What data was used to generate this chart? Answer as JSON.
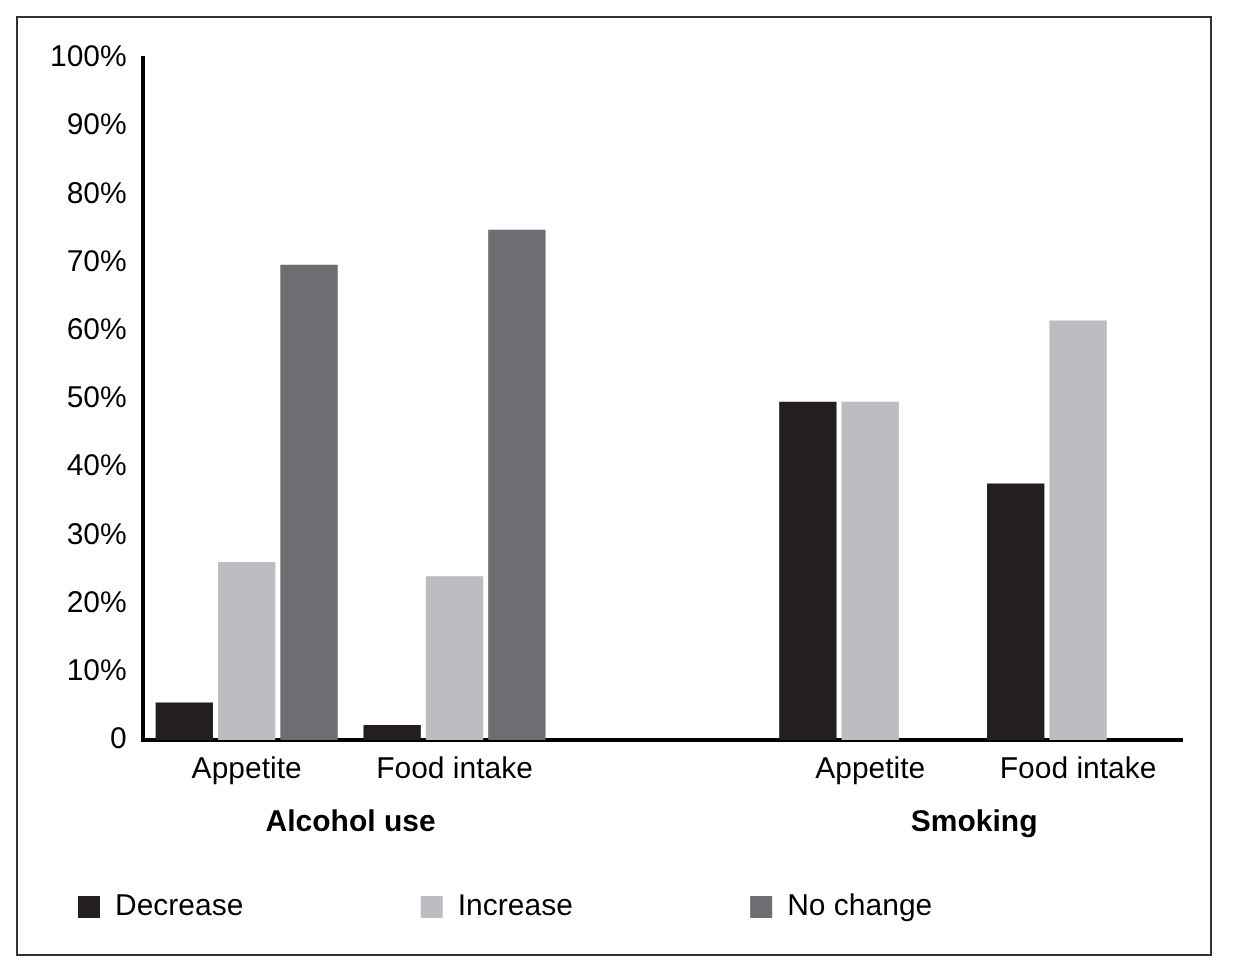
{
  "chart_data": {
    "type": "bar",
    "categories": [
      "Appetite",
      "Food intake",
      null,
      "Appetite",
      "Food intake"
    ],
    "series": [
      {
        "name": "Decrease",
        "color": "#231f20",
        "values": [
          5.5,
          2.2,
          null,
          49.6,
          37.6
        ]
      },
      {
        "name": "Increase",
        "color": "#bcbdc0",
        "values": [
          26.1,
          24,
          null,
          49.6,
          61.5
        ]
      },
      {
        "name": "No change",
        "color": "#6d6e71",
        "values": [
          69.7,
          74.8,
          null,
          null,
          null
        ]
      }
    ],
    "ylim": [
      0,
      100
    ],
    "yticks": [
      {
        "value": 0,
        "label": "0"
      },
      {
        "value": 10,
        "label": "10%"
      },
      {
        "value": 20,
        "label": "20%"
      },
      {
        "value": 30,
        "label": "30%"
      },
      {
        "value": 40,
        "label": "40%"
      },
      {
        "value": 50,
        "label": "50%"
      },
      {
        "value": 60,
        "label": "60%"
      },
      {
        "value": 70,
        "label": "70%"
      },
      {
        "value": 80,
        "label": "80%"
      },
      {
        "value": 90,
        "label": "90%"
      },
      {
        "value": 100,
        "label": "100%"
      }
    ],
    "grid": false,
    "legend": "bottom",
    "annotations": [
      "Alcohol use",
      "Smoking"
    ]
  }
}
